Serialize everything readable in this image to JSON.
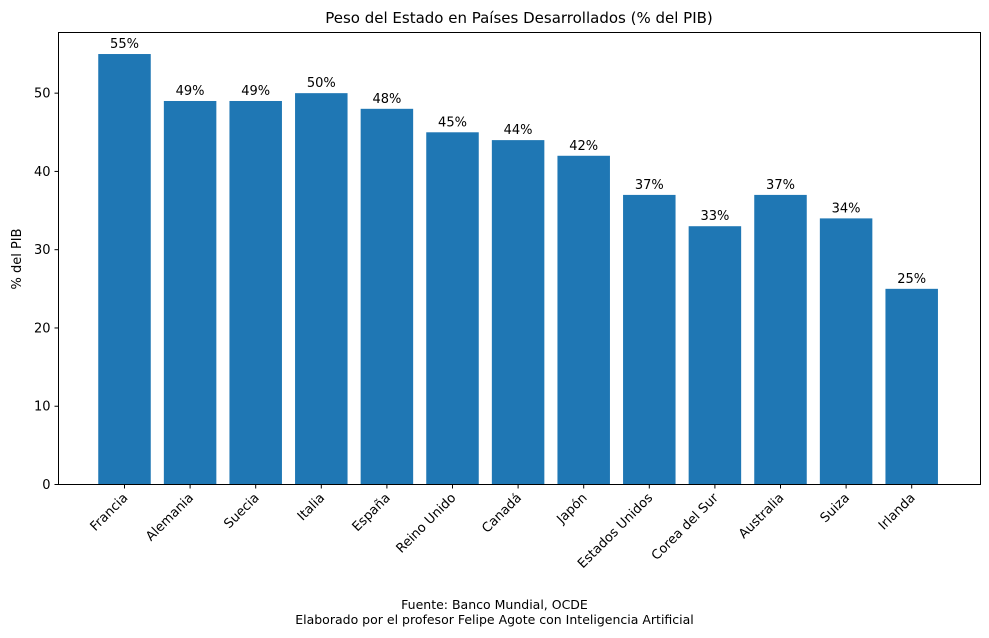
{
  "chart_data": {
    "type": "bar",
    "title": "Peso del Estado en Países Desarrollados (% del PIB)",
    "xlabel": "",
    "ylabel": "% del PIB",
    "categories": [
      "Francia",
      "Alemania",
      "Suecia",
      "Italia",
      "España",
      "Reino Unido",
      "Canadá",
      "Japón",
      "Estados Unidos",
      "Corea del Sur",
      "Australia",
      "Suiza",
      "Irlanda"
    ],
    "values": [
      55,
      49,
      49,
      50,
      48,
      45,
      44,
      42,
      37,
      33,
      37,
      34,
      25
    ],
    "data_labels": [
      "55%",
      "49%",
      "49%",
      "50%",
      "48%",
      "45%",
      "44%",
      "42%",
      "37%",
      "33%",
      "37%",
      "34%",
      "25%"
    ],
    "ylim": [
      0,
      57.75
    ],
    "yticks": [
      0,
      10,
      20,
      30,
      40,
      50
    ],
    "grid": false,
    "bar_color": "#1f77b4"
  },
  "footer": {
    "source": "Fuente: Banco Mundial, OCDE",
    "credit": "Elaborado por el profesor Felipe Agote con Inteligencia Artificial"
  }
}
